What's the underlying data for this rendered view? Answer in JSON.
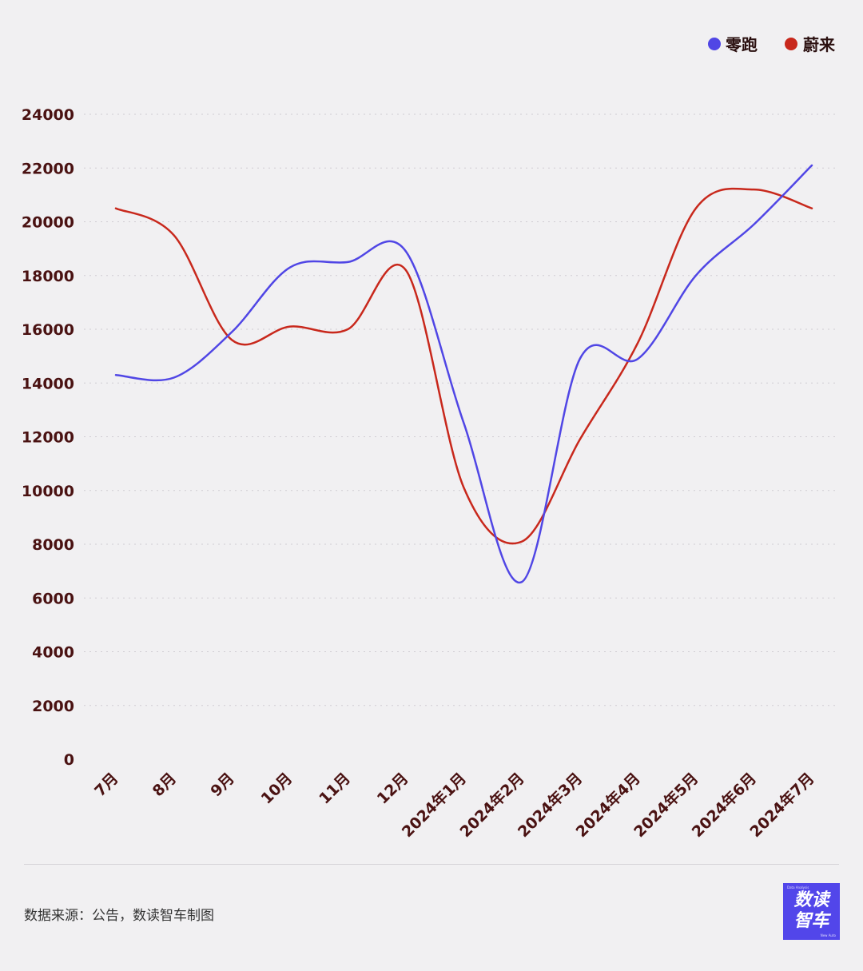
{
  "chart_data": {
    "type": "line",
    "title": "",
    "xlabel": "",
    "ylabel": "",
    "categories": [
      "7月",
      "8月",
      "9月",
      "10月",
      "11月",
      "12月",
      "2024年1月",
      "2024年2月",
      "2024年3月",
      "2024年4月",
      "2024年5月",
      "2024年6月",
      "2024年7月"
    ],
    "y_ticks": [
      0,
      2000,
      4000,
      6000,
      8000,
      10000,
      12000,
      14000,
      16000,
      18000,
      20000,
      22000,
      24000
    ],
    "ylim": [
      0,
      24000
    ],
    "grid": true,
    "legend_position": "top-right",
    "series": [
      {
        "name": "零跑",
        "color": "#5046e5",
        "values": [
          14300,
          14200,
          15900,
          18300,
          18500,
          18900,
          12500,
          6600,
          14900,
          14900,
          18000,
          19900,
          22100
        ]
      },
      {
        "name": "蔚来",
        "color": "#c8281c",
        "values": [
          20500,
          19500,
          15600,
          16100,
          16000,
          18200,
          10100,
          8100,
          11900,
          15500,
          20500,
          21200,
          20500
        ]
      }
    ]
  },
  "footer": {
    "source": "数据来源：公告，数读智车制图"
  },
  "logo": {
    "line1": "数读",
    "line2": "智车",
    "tag_top": "Data Analysis",
    "tag_bottom": "New Auto"
  }
}
